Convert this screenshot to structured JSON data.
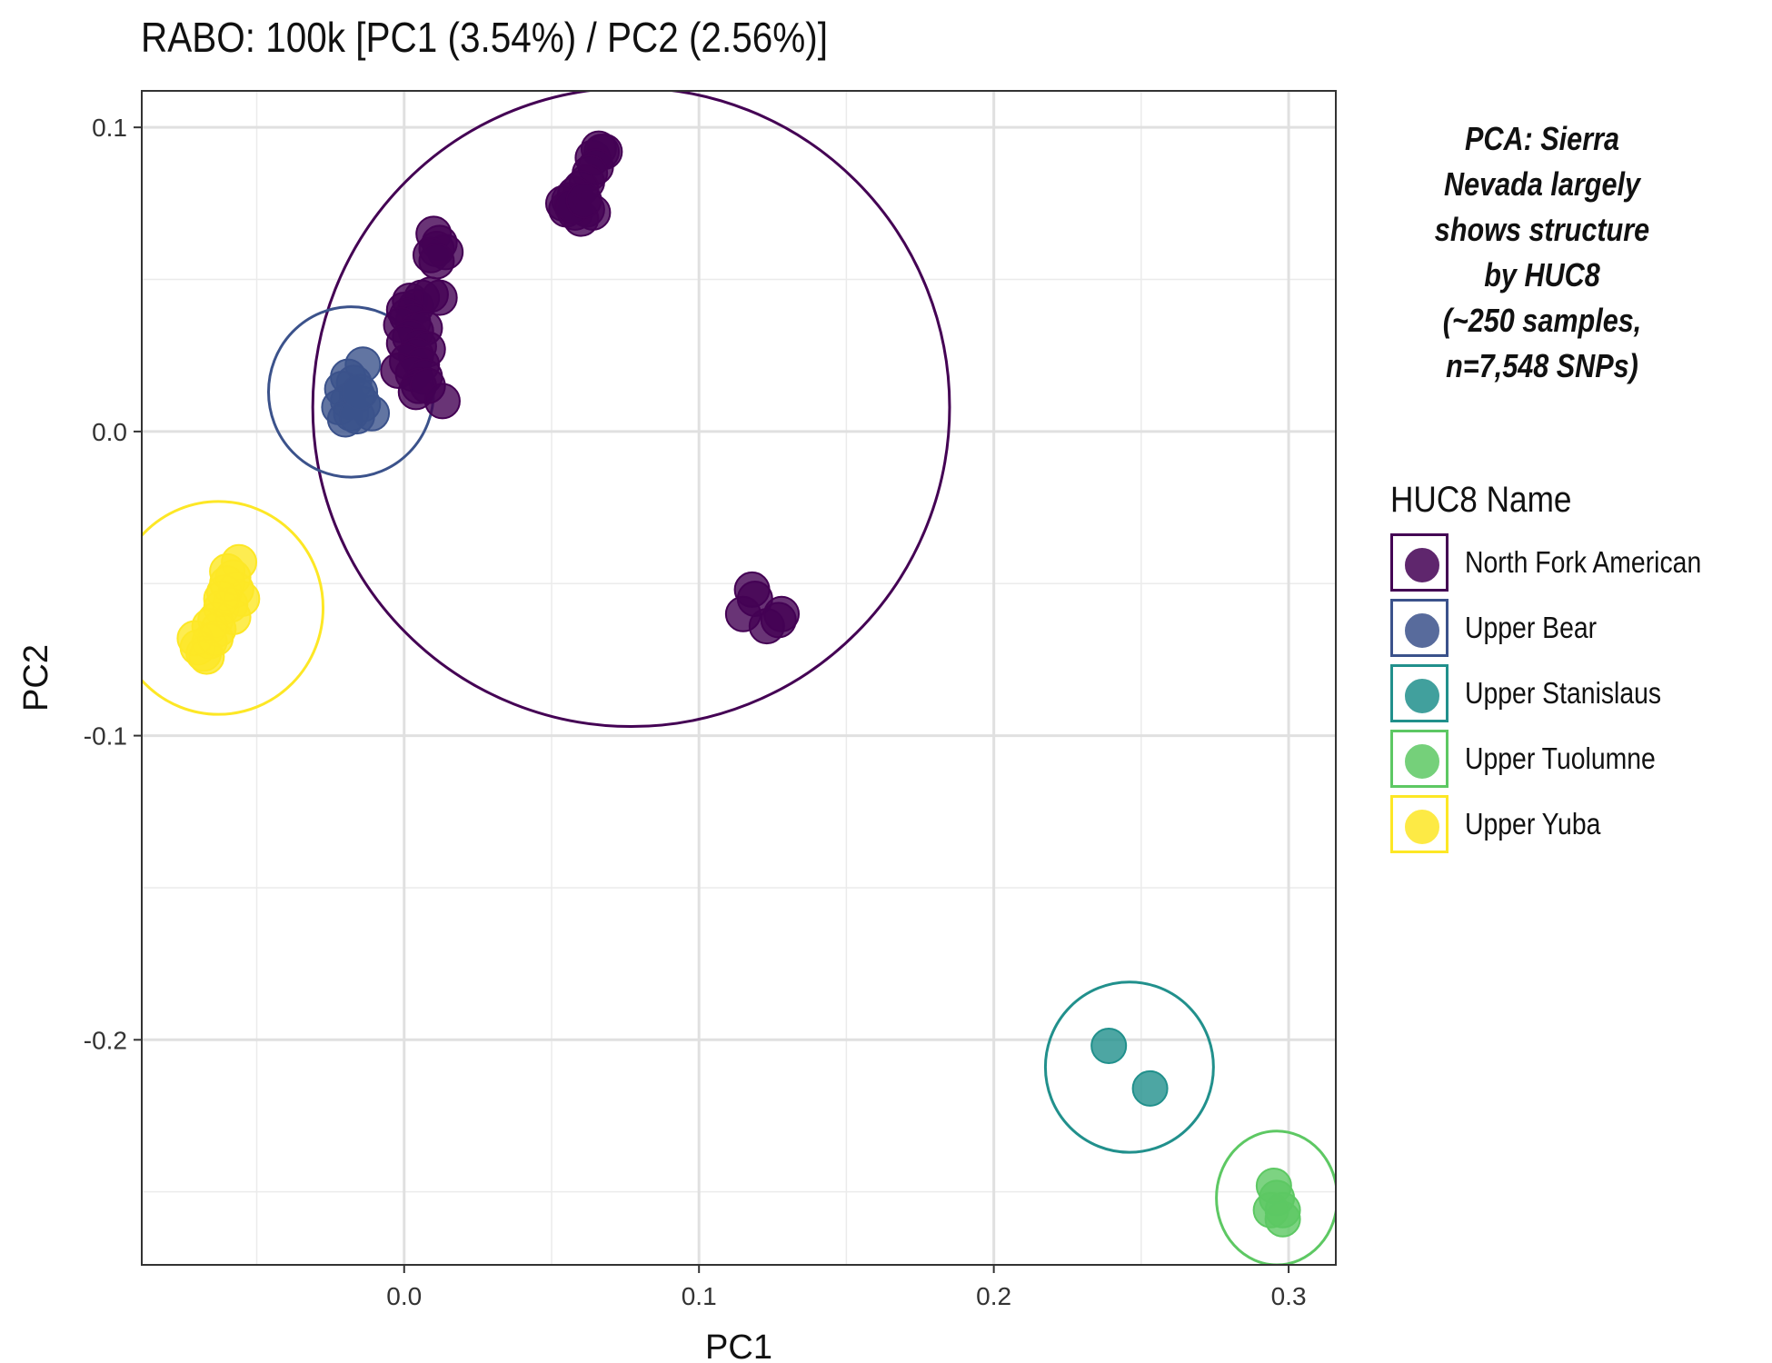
{
  "chart_data": {
    "type": "scatter",
    "title": "RABO: 100k [PC1 (3.54%) / PC2 (2.56%)]",
    "xlabel": "PC1",
    "ylabel": "PC2",
    "xlim": [
      -0.089,
      0.316
    ],
    "ylim": [
      -0.274,
      0.112
    ],
    "x_ticks": [
      0.0,
      0.1,
      0.2,
      0.3
    ],
    "x_tick_labels": [
      "0.0",
      "0.1",
      "0.2",
      "0.3"
    ],
    "y_ticks": [
      0.1,
      0.0,
      -0.1,
      -0.2
    ],
    "y_tick_labels": [
      "0.1",
      "0.0",
      "-0.1",
      "-0.2"
    ],
    "grid": true,
    "annotation": [
      "PCA: Sierra",
      "Nevada largely",
      "shows structure",
      "by HUC8",
      "(~250 samples,",
      "n=7,548 SNPs)"
    ],
    "legend": {
      "title": "HUC8 Name",
      "placement": "right"
    },
    "series": [
      {
        "name": "North Fork American",
        "color": "#440154",
        "ellipse": {
          "cx": 0.077,
          "cy": 0.008,
          "rx": 0.108,
          "ry": 0.105
        },
        "points": [
          [
            0.066,
            0.093
          ],
          [
            0.067,
            0.092
          ],
          [
            0.064,
            0.09
          ],
          [
            0.068,
            0.092
          ],
          [
            0.065,
            0.087
          ],
          [
            0.063,
            0.085
          ],
          [
            0.062,
            0.082
          ],
          [
            0.06,
            0.08
          ],
          [
            0.058,
            0.078
          ],
          [
            0.056,
            0.076
          ],
          [
            0.054,
            0.075
          ],
          [
            0.055,
            0.073
          ],
          [
            0.058,
            0.072
          ],
          [
            0.062,
            0.073
          ],
          [
            0.064,
            0.072
          ],
          [
            0.06,
            0.07
          ],
          [
            0.057,
            0.074
          ],
          [
            0.061,
            0.076
          ],
          [
            0.01,
            0.065
          ],
          [
            0.012,
            0.062
          ],
          [
            0.011,
            0.06
          ],
          [
            0.014,
            0.059
          ],
          [
            0.009,
            0.058
          ],
          [
            0.011,
            0.056
          ],
          [
            0.0,
            0.04
          ],
          [
            0.002,
            0.043
          ],
          [
            0.004,
            0.041
          ],
          [
            0.006,
            0.044
          ],
          [
            0.009,
            0.045
          ],
          [
            0.012,
            0.044
          ],
          [
            0.001,
            0.038
          ],
          [
            0.003,
            0.036
          ],
          [
            -0.001,
            0.035
          ],
          [
            0.004,
            0.033
          ],
          [
            0.007,
            0.034
          ],
          [
            0.002,
            0.031
          ],
          [
            0.0,
            0.029
          ],
          [
            0.005,
            0.028
          ],
          [
            0.008,
            0.027
          ],
          [
            0.004,
            0.025
          ],
          [
            0.001,
            0.023
          ],
          [
            0.006,
            0.022
          ],
          [
            -0.002,
            0.02
          ],
          [
            0.003,
            0.019
          ],
          [
            0.007,
            0.018
          ],
          [
            0.005,
            0.015
          ],
          [
            0.004,
            0.013
          ],
          [
            0.008,
            0.015
          ],
          [
            0.013,
            0.01
          ],
          [
            0.118,
            -0.052
          ],
          [
            0.119,
            -0.055
          ],
          [
            0.115,
            -0.06
          ],
          [
            0.123,
            -0.064
          ],
          [
            0.127,
            -0.062
          ],
          [
            0.128,
            -0.06
          ]
        ]
      },
      {
        "name": "Upper Bear",
        "color": "#3b528b",
        "ellipse": {
          "cx": -0.018,
          "cy": 0.013,
          "rx": 0.028,
          "ry": 0.028
        },
        "points": [
          [
            -0.014,
            0.022
          ],
          [
            -0.019,
            0.018
          ],
          [
            -0.017,
            0.016
          ],
          [
            -0.021,
            0.014
          ],
          [
            -0.016,
            0.012
          ],
          [
            -0.019,
            0.01
          ],
          [
            -0.022,
            0.008
          ],
          [
            -0.014,
            0.009
          ],
          [
            -0.018,
            0.006
          ],
          [
            -0.02,
            0.004
          ],
          [
            -0.011,
            0.006
          ],
          [
            -0.016,
            0.005
          ],
          [
            -0.015,
            0.013
          ]
        ]
      },
      {
        "name": "Upper Stanislaus",
        "color": "#21908c",
        "ellipse": {
          "cx": 0.246,
          "cy": -0.209,
          "rx": 0.0285,
          "ry": 0.028
        },
        "points": [
          [
            0.239,
            -0.202
          ],
          [
            0.253,
            -0.216
          ]
        ]
      },
      {
        "name": "Upper Tuolumne",
        "color": "#5dc863",
        "ellipse": {
          "cx": 0.296,
          "cy": -0.252,
          "rx": 0.0205,
          "ry": 0.022
        },
        "points": [
          [
            0.295,
            -0.248
          ],
          [
            0.298,
            -0.256
          ],
          [
            0.296,
            -0.252
          ],
          [
            0.298,
            -0.259
          ],
          [
            0.294,
            -0.256
          ]
        ]
      },
      {
        "name": "Upper Yuba",
        "color": "#fde725",
        "ellipse": {
          "cx": -0.063,
          "cy": -0.058,
          "rx": 0.0355,
          "ry": 0.035
        },
        "points": [
          [
            -0.056,
            -0.043
          ],
          [
            -0.058,
            -0.048
          ],
          [
            -0.06,
            -0.046
          ],
          [
            -0.057,
            -0.052
          ],
          [
            -0.061,
            -0.053
          ],
          [
            -0.055,
            -0.055
          ],
          [
            -0.059,
            -0.057
          ],
          [
            -0.062,
            -0.058
          ],
          [
            -0.058,
            -0.061
          ],
          [
            -0.064,
            -0.062
          ],
          [
            -0.066,
            -0.064
          ],
          [
            -0.063,
            -0.065
          ],
          [
            -0.066,
            -0.069
          ],
          [
            -0.07,
            -0.071
          ],
          [
            -0.068,
            -0.073
          ],
          [
            -0.067,
            -0.074
          ],
          [
            -0.071,
            -0.068
          ],
          [
            -0.064,
            -0.068
          ],
          [
            -0.06,
            -0.05
          ],
          [
            -0.062,
            -0.055
          ]
        ]
      }
    ]
  }
}
